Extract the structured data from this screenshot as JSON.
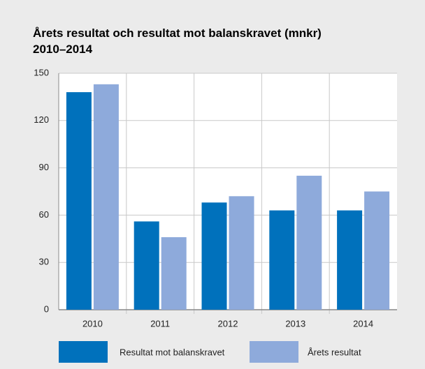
{
  "chart_data": {
    "type": "bar",
    "title": "Årets resultat och resultat mot balanskravet (mnkr) 2010–2014",
    "categories": [
      "2010",
      "2011",
      "2012",
      "2013",
      "2014"
    ],
    "series": [
      {
        "name": "Resultat mot balanskravet",
        "color": "#0071bc",
        "values": [
          138,
          56,
          68,
          63,
          63
        ]
      },
      {
        "name": "Årets resultat",
        "color": "#8eaadb",
        "values": [
          143,
          46,
          72,
          85,
          75
        ]
      }
    ],
    "ylim": [
      0,
      150
    ],
    "yticks": [
      0,
      30,
      60,
      90,
      120,
      150
    ],
    "grid": true
  }
}
